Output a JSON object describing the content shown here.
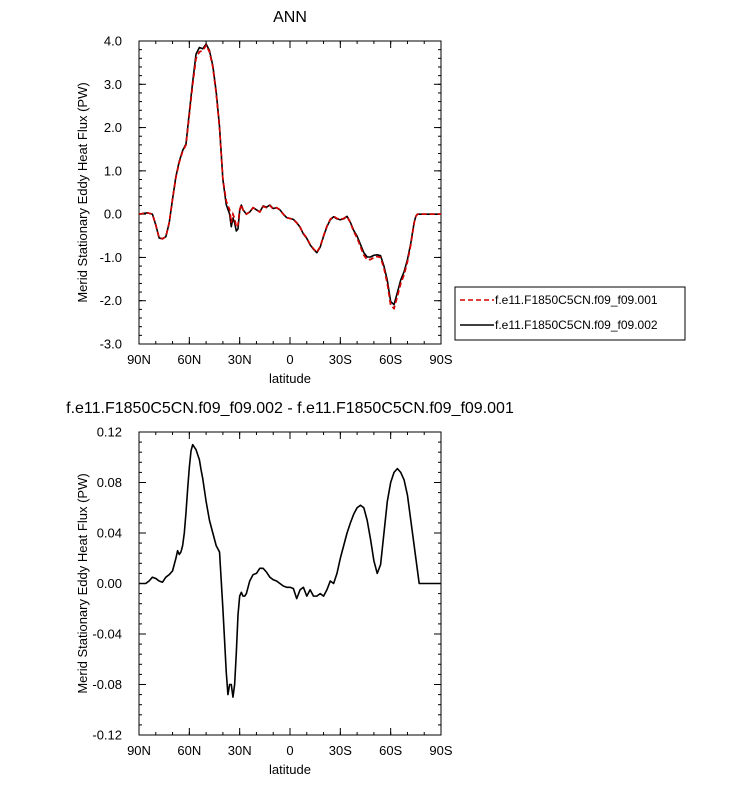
{
  "chart_data": [
    {
      "type": "line",
      "title": "ANN",
      "xlabel": "latitude",
      "ylabel": "Merid Stationary Eddy Heat Flux (PW)",
      "xlim": [
        90,
        -90
      ],
      "ylim": [
        -3.0,
        4.0
      ],
      "x_ticks": [
        90,
        60,
        30,
        0,
        -30,
        -60,
        -90
      ],
      "x_tick_labels": [
        "90N",
        "60N",
        "30N",
        "0",
        "30S",
        "60S",
        "90S"
      ],
      "y_ticks": [
        4,
        3,
        2,
        1,
        0,
        -1,
        -2,
        -3
      ],
      "y_tick_labels": [
        "4.0",
        "3.0",
        "2.0",
        "1.0",
        "0.0",
        "-1.0",
        "-2.0",
        "-3.0"
      ],
      "legend_position": "right",
      "series": [
        {
          "name": "f.e11.F1850C5CN.f09_f09.001",
          "color": "#d40000",
          "dash": "dashed",
          "x": [
            90,
            85,
            82,
            80,
            78,
            76,
            74,
            72,
            70,
            68,
            66,
            64,
            62,
            60,
            58,
            56,
            54,
            52,
            50,
            48,
            46,
            44,
            42,
            40,
            38,
            36,
            35,
            34,
            33,
            32,
            31,
            30,
            29,
            28,
            26,
            24,
            22,
            20,
            18,
            16,
            14,
            12,
            10,
            8,
            6,
            4,
            2,
            0,
            -2,
            -4,
            -6,
            -8,
            -10,
            -12,
            -14,
            -16,
            -18,
            -20,
            -22,
            -24,
            -26,
            -28,
            -30,
            -32,
            -34,
            -36,
            -38,
            -40,
            -42,
            -44,
            -46,
            -48,
            -50,
            -52,
            -54,
            -56,
            -58,
            -60,
            -62,
            -64,
            -66,
            -68,
            -70,
            -71,
            -72,
            -73,
            -74,
            -75,
            -76,
            -78,
            -80,
            -82,
            -84,
            -86,
            -88,
            -90
          ],
          "y": [
            0.0,
            0.03,
            0.0,
            -0.25,
            -0.55,
            -0.57,
            -0.52,
            -0.2,
            0.35,
            0.85,
            1.2,
            1.45,
            1.6,
            2.3,
            3.0,
            3.6,
            3.75,
            3.78,
            3.9,
            3.75,
            3.4,
            2.8,
            2.0,
            0.8,
            0.3,
            0.1,
            -0.2,
            0.0,
            -0.1,
            -0.3,
            -0.25,
            0.1,
            0.22,
            0.1,
            0.0,
            0.05,
            0.15,
            0.1,
            0.05,
            0.18,
            0.15,
            0.2,
            0.12,
            0.15,
            0.1,
            0.0,
            -0.08,
            -0.1,
            -0.12,
            -0.2,
            -0.3,
            -0.45,
            -0.55,
            -0.7,
            -0.8,
            -0.88,
            -0.75,
            -0.5,
            -0.28,
            -0.12,
            -0.05,
            -0.1,
            -0.12,
            -0.1,
            -0.05,
            -0.2,
            -0.4,
            -0.55,
            -0.75,
            -0.95,
            -1.05,
            -1.05,
            -1.0,
            -0.98,
            -1.0,
            -1.25,
            -1.6,
            -2.1,
            -2.18,
            -1.9,
            -1.6,
            -1.4,
            -1.1,
            -0.9,
            -0.7,
            -0.45,
            -0.2,
            -0.05,
            0.0,
            0.0,
            0.0,
            0.0,
            0.0,
            0.0,
            0.0,
            0.0
          ]
        },
        {
          "name": "f.e11.F1850C5CN.f09_f09.002",
          "color": "#000000",
          "dash": "solid",
          "x": [
            90,
            85,
            82,
            80,
            78,
            76,
            74,
            72,
            70,
            68,
            66,
            64,
            62,
            60,
            58,
            56,
            54,
            52,
            50,
            48,
            46,
            44,
            42,
            40,
            38,
            36,
            35,
            34,
            33,
            32,
            31,
            30,
            29,
            28,
            26,
            24,
            22,
            20,
            18,
            16,
            14,
            12,
            10,
            8,
            6,
            4,
            2,
            0,
            -2,
            -4,
            -6,
            -8,
            -10,
            -12,
            -14,
            -16,
            -18,
            -20,
            -22,
            -24,
            -26,
            -28,
            -30,
            -32,
            -34,
            -36,
            -38,
            -40,
            -42,
            -44,
            -46,
            -48,
            -50,
            -52,
            -54,
            -56,
            -58,
            -60,
            -62,
            -64,
            -66,
            -68,
            -70,
            -71,
            -72,
            -73,
            -74,
            -75,
            -76,
            -78,
            -80,
            -82,
            -84,
            -86,
            -88,
            -90
          ],
          "y": [
            0.0,
            0.03,
            0.0,
            -0.25,
            -0.55,
            -0.57,
            -0.52,
            -0.2,
            0.35,
            0.87,
            1.22,
            1.47,
            1.62,
            2.35,
            3.06,
            3.7,
            3.85,
            3.82,
            3.93,
            3.78,
            3.43,
            2.83,
            2.02,
            0.8,
            0.22,
            0.0,
            -0.29,
            -0.09,
            -0.2,
            -0.39,
            -0.34,
            0.08,
            0.21,
            0.1,
            0.0,
            0.05,
            0.15,
            0.1,
            0.05,
            0.19,
            0.16,
            0.21,
            0.13,
            0.15,
            0.1,
            0.0,
            -0.08,
            -0.1,
            -0.12,
            -0.2,
            -0.3,
            -0.46,
            -0.56,
            -0.71,
            -0.81,
            -0.89,
            -0.76,
            -0.51,
            -0.29,
            -0.13,
            -0.06,
            -0.11,
            -0.13,
            -0.11,
            -0.05,
            -0.19,
            -0.38,
            -0.51,
            -0.7,
            -0.89,
            -0.99,
            -0.99,
            -0.95,
            -0.94,
            -0.96,
            -1.2,
            -1.53,
            -2.02,
            -2.09,
            -1.81,
            -1.52,
            -1.33,
            -1.05,
            -0.86,
            -0.67,
            -0.43,
            -0.19,
            -0.05,
            0.0,
            0.0,
            0.0,
            0.0,
            0.0,
            0.0,
            0.0,
            0.0
          ]
        }
      ]
    },
    {
      "type": "line",
      "title": "f.e11.F1850C5CN.f09_f09.002 - f.e11.F1850C5CN.f09_f09.001",
      "xlabel": "latitude",
      "ylabel": "Merid Stationary Eddy Heat Flux (PW)",
      "xlim": [
        90,
        -90
      ],
      "ylim": [
        -0.12,
        0.12
      ],
      "x_ticks": [
        90,
        60,
        30,
        0,
        -30,
        -60,
        -90
      ],
      "x_tick_labels": [
        "90N",
        "60N",
        "30N",
        "0",
        "30S",
        "60S",
        "90S"
      ],
      "y_ticks": [
        0.12,
        0.08,
        0.04,
        0.0,
        -0.04,
        -0.08,
        -0.12
      ],
      "y_tick_labels": [
        "0.12",
        "0.08",
        "0.04",
        "0.00",
        "-0.04",
        "-0.08",
        "-0.12"
      ],
      "series": [
        {
          "color": "#000000",
          "dash": "solid",
          "x": [
            90,
            86,
            84,
            82,
            80,
            78,
            76,
            74,
            72,
            70,
            68,
            67,
            66,
            65,
            64,
            63,
            62,
            61,
            60,
            59,
            58,
            57,
            56,
            55,
            54,
            53,
            52,
            50,
            48,
            46,
            44,
            42,
            40,
            39,
            38,
            37,
            36,
            35,
            34,
            33,
            32,
            31,
            30,
            29,
            28,
            27,
            26,
            24,
            22,
            20,
            18,
            16,
            14,
            12,
            10,
            8,
            6,
            4,
            2,
            0,
            -2,
            -4,
            -6,
            -8,
            -10,
            -12,
            -14,
            -16,
            -18,
            -20,
            -22,
            -24,
            -26,
            -28,
            -30,
            -32,
            -34,
            -36,
            -38,
            -40,
            -42,
            -44,
            -46,
            -48,
            -50,
            -52,
            -54,
            -56,
            -58,
            -60,
            -62,
            -64,
            -66,
            -68,
            -70,
            -72,
            -73,
            -74,
            -75,
            -76,
            -77,
            -78,
            -79,
            -80,
            -82,
            -84,
            -86,
            -88,
            -90
          ],
          "y": [
            0.0,
            0.0,
            0.002,
            0.005,
            0.004,
            0.002,
            0.001,
            0.005,
            0.007,
            0.01,
            0.02,
            0.026,
            0.023,
            0.025,
            0.03,
            0.04,
            0.056,
            0.075,
            0.092,
            0.105,
            0.11,
            0.108,
            0.106,
            0.102,
            0.098,
            0.09,
            0.083,
            0.065,
            0.05,
            0.04,
            0.03,
            0.025,
            -0.02,
            -0.045,
            -0.07,
            -0.088,
            -0.08,
            -0.08,
            -0.09,
            -0.08,
            -0.055,
            -0.025,
            -0.01,
            -0.007,
            -0.01,
            -0.01,
            -0.008,
            0.002,
            0.007,
            0.008,
            0.012,
            0.012,
            0.009,
            0.005,
            0.003,
            0.002,
            0.0,
            -0.002,
            -0.003,
            -0.003,
            -0.004,
            -0.012,
            -0.005,
            -0.003,
            -0.01,
            -0.005,
            -0.01,
            -0.01,
            -0.008,
            -0.01,
            -0.005,
            0.002,
            0.0,
            0.008,
            0.02,
            0.03,
            0.04,
            0.048,
            0.055,
            0.06,
            0.062,
            0.06,
            0.05,
            0.035,
            0.018,
            0.008,
            0.015,
            0.04,
            0.065,
            0.08,
            0.088,
            0.091,
            0.088,
            0.082,
            0.07,
            0.05,
            0.04,
            0.03,
            0.02,
            0.01,
            0.0,
            0.0,
            0.0,
            0.0,
            0.0,
            0.0,
            0.0,
            0.0,
            0.0
          ]
        }
      ]
    }
  ]
}
